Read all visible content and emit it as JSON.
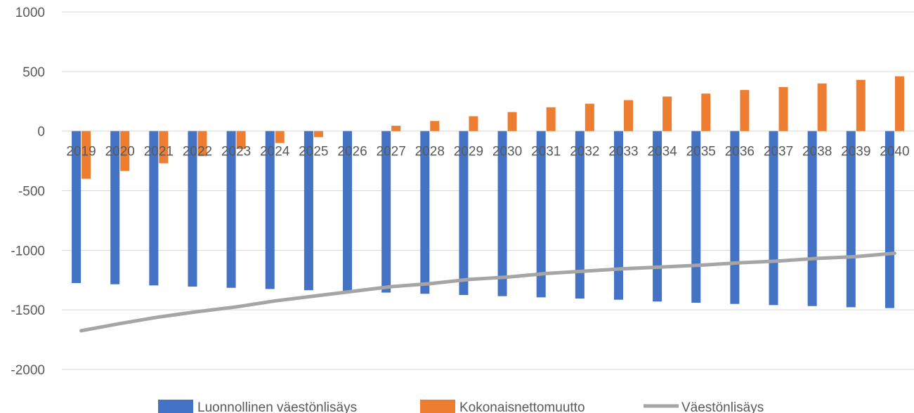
{
  "chart_data": {
    "type": "bar",
    "categories": [
      "2019",
      "2020",
      "2021",
      "2022",
      "2023",
      "2024",
      "2025",
      "2026",
      "2027",
      "2028",
      "2029",
      "2030",
      "2031",
      "2032",
      "2033",
      "2034",
      "2035",
      "2036",
      "2037",
      "2038",
      "2039",
      "2040"
    ],
    "series": [
      {
        "name": "Luonnollinen väestönlisäys",
        "type": "bar",
        "color": "#4472C4",
        "values": [
          -1275,
          -1285,
          -1295,
          -1305,
          -1315,
          -1325,
          -1335,
          -1345,
          -1355,
          -1365,
          -1375,
          -1385,
          -1395,
          -1405,
          -1415,
          -1430,
          -1440,
          -1450,
          -1460,
          -1468,
          -1478,
          -1485
        ]
      },
      {
        "name": "Kokonaisnettomuutto",
        "type": "bar",
        "color": "#ED7D31",
        "values": [
          -400,
          -335,
          -270,
          -210,
          -150,
          -100,
          -50,
          0,
          45,
          85,
          125,
          160,
          200,
          230,
          260,
          290,
          315,
          345,
          370,
          400,
          430,
          460
        ]
      },
      {
        "name": "Väestönlisäys",
        "type": "line",
        "color": "#A5A5A5",
        "values": [
          -1675,
          -1615,
          -1560,
          -1515,
          -1475,
          -1425,
          -1385,
          -1345,
          -1305,
          -1280,
          -1245,
          -1225,
          -1195,
          -1175,
          -1155,
          -1140,
          -1125,
          -1105,
          -1090,
          -1068,
          -1053,
          -1025
        ]
      }
    ],
    "y_ticks": [
      "1000",
      "500",
      "0",
      "-500",
      "-1000",
      "-1500",
      "-2000"
    ],
    "ylim": [
      -2000,
      1000
    ],
    "grid": true,
    "legend": "bottom"
  }
}
